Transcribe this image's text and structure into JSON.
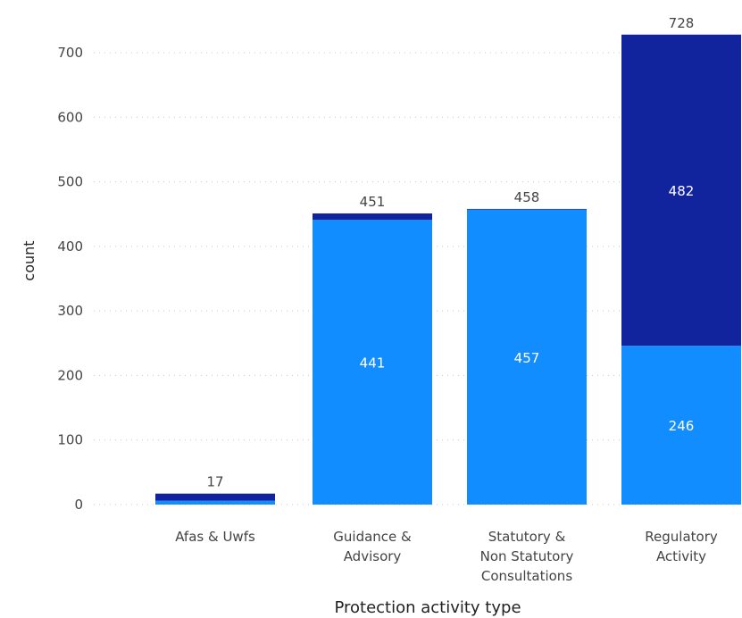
{
  "chart_data": {
    "type": "bar",
    "stacked": true,
    "title": "",
    "xlabel": "Protection activity type",
    "ylabel": "count",
    "ylim": [
      0,
      728
    ],
    "yticks": [
      0,
      100,
      200,
      300,
      400,
      500,
      600,
      700
    ],
    "grid": true,
    "categories": [
      [
        "Afas & Uwfs"
      ],
      [
        "Guidance &",
        "Advisory"
      ],
      [
        "Statutory &",
        "Non Statutory",
        "Consultations"
      ],
      [
        "Regulatory",
        "Activity"
      ]
    ],
    "series": [
      {
        "color": "#118dff",
        "values": [
          6,
          441,
          457,
          246
        ],
        "labels": [
          "",
          "441",
          "457",
          "246"
        ]
      },
      {
        "color": "#12239e",
        "values": [
          11,
          10,
          1,
          482
        ],
        "labels": [
          "",
          "",
          "",
          "482"
        ]
      }
    ],
    "totals": [
      17,
      451,
      458,
      728
    ]
  }
}
